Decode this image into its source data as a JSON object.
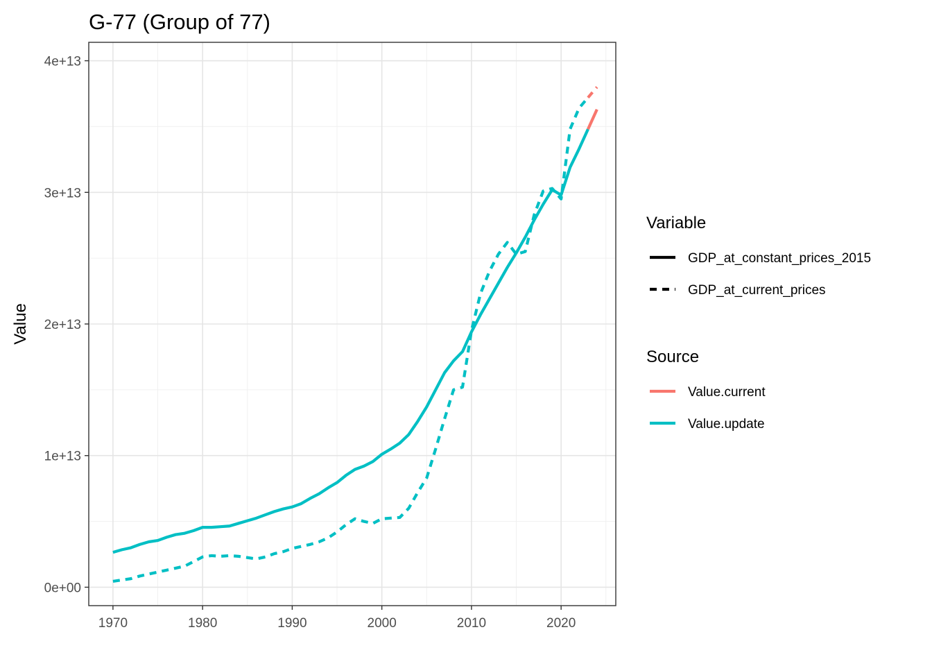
{
  "chart_data": {
    "type": "line",
    "title": "G-77 (Group of 77)",
    "xlabel": "",
    "ylabel": "Value",
    "xlim": [
      1967.3,
      2026.1
    ],
    "ylim": [
      -1400000000000.0,
      41400000000000.0
    ],
    "x_ticks": [
      1970,
      1980,
      1990,
      2000,
      2010,
      2020
    ],
    "x_tick_labels": [
      "1970",
      "1980",
      "1990",
      "2000",
      "2010",
      "2020"
    ],
    "y_ticks": [
      0,
      10000000000000.0,
      20000000000000.0,
      30000000000000.0,
      40000000000000.0
    ],
    "y_tick_labels": [
      "0e+00",
      "1e+13",
      "2e+13",
      "3e+13",
      "4e+13"
    ],
    "y_minor_ticks": [
      5000000000000.0,
      15000000000000.0,
      25000000000000.0,
      35000000000000.0
    ],
    "x_minor_ticks": [
      1975,
      1985,
      1995,
      2005,
      2015,
      2025
    ],
    "grid": true,
    "legend_placement": "right",
    "colors": {
      "Value.current": "#F8766D",
      "Value.update": "#00BFC4"
    },
    "legend": {
      "variable_title": "Variable",
      "variable_items": [
        {
          "label": "GDP_at_constant_prices_2015",
          "dash": "solid"
        },
        {
          "label": "GDP_at_current_prices",
          "dash": "dashed"
        }
      ],
      "source_title": "Source",
      "source_items": [
        {
          "label": "Value.current",
          "color": "#F8766D"
        },
        {
          "label": "Value.update",
          "color": "#00BFC4"
        }
      ]
    },
    "series": [
      {
        "variable": "GDP_at_constant_prices_2015",
        "source": "Value.update",
        "x": [
          1970,
          1971,
          1972,
          1973,
          1974,
          1975,
          1976,
          1977,
          1978,
          1979,
          1980,
          1981,
          1982,
          1983,
          1984,
          1985,
          1986,
          1987,
          1988,
          1989,
          1990,
          1991,
          1992,
          1993,
          1994,
          1995,
          1996,
          1997,
          1998,
          1999,
          2000,
          2001,
          2002,
          2003,
          2004,
          2005,
          2006,
          2007,
          2008,
          2009,
          2010,
          2011,
          2012,
          2013,
          2014,
          2015,
          2016,
          2017,
          2018,
          2019,
          2020,
          2021,
          2022,
          2023
        ],
        "values": [
          2650000000000.0,
          2850000000000.0,
          3000000000000.0,
          3250000000000.0,
          3450000000000.0,
          3550000000000.0,
          3800000000000.0,
          4000000000000.0,
          4100000000000.0,
          4300000000000.0,
          4550000000000.0,
          4550000000000.0,
          4600000000000.0,
          4650000000000.0,
          4850000000000.0,
          5050000000000.0,
          5250000000000.0,
          5500000000000.0,
          5750000000000.0,
          5950000000000.0,
          6100000000000.0,
          6350000000000.0,
          6750000000000.0,
          7100000000000.0,
          7550000000000.0,
          7950000000000.0,
          8500000000000.0,
          8950000000000.0,
          9200000000000.0,
          9550000000000.0,
          10100000000000.0,
          10500000000000.0,
          10950000000000.0,
          11600000000000.0,
          12600000000000.0,
          13700000000000.0,
          15000000000000.0,
          16300000000000.0,
          17200000000000.0,
          17900000000000.0,
          19400000000000.0,
          20700000000000.0,
          21900000000000.0,
          23100000000000.0,
          24300000000000.0,
          25400000000000.0,
          26600000000000.0,
          27900000000000.0,
          29100000000000.0,
          30200000000000.0,
          29800000000000.0,
          31900000000000.0,
          33300000000000.0,
          34800000000000.0
        ]
      },
      {
        "variable": "GDP_at_constant_prices_2015",
        "source": "Value.current",
        "x": [
          2023,
          2024
        ],
        "values": [
          34800000000000.0,
          36300000000000.0
        ]
      },
      {
        "variable": "GDP_at_current_prices",
        "source": "Value.update",
        "x": [
          1970,
          1971,
          1972,
          1973,
          1974,
          1975,
          1976,
          1977,
          1978,
          1979,
          1980,
          1981,
          1982,
          1983,
          1984,
          1985,
          1986,
          1987,
          1988,
          1989,
          1990,
          1991,
          1992,
          1993,
          1994,
          1995,
          1996,
          1997,
          1998,
          1999,
          2000,
          2001,
          2002,
          2003,
          2004,
          2005,
          2006,
          2007,
          2008,
          2009,
          2010,
          2011,
          2012,
          2013,
          2014,
          2015,
          2016,
          2017,
          2018,
          2019,
          2020,
          2021,
          2022,
          2023
        ],
        "values": [
          450000000000.0,
          550000000000.0,
          650000000000.0,
          850000000000.0,
          1000000000000.0,
          1150000000000.0,
          1300000000000.0,
          1450000000000.0,
          1600000000000.0,
          1950000000000.0,
          2300000000000.0,
          2400000000000.0,
          2350000000000.0,
          2400000000000.0,
          2350000000000.0,
          2250000000000.0,
          2150000000000.0,
          2300000000000.0,
          2550000000000.0,
          2700000000000.0,
          2950000000000.0,
          3100000000000.0,
          3250000000000.0,
          3450000000000.0,
          3750000000000.0,
          4200000000000.0,
          4750000000000.0,
          5200000000000.0,
          5000000000000.0,
          4850000000000.0,
          5200000000000.0,
          5250000000000.0,
          5300000000000.0,
          6000000000000.0,
          7200000000000.0,
          8300000000000.0,
          10500000000000.0,
          12800000000000.0,
          15000000000000.0,
          15200000000000.0,
          19500000000000.0,
          22300000000000.0,
          24000000000000.0,
          25300000000000.0,
          26200000000000.0,
          25300000000000.0,
          25500000000000.0,
          28300000000000.0,
          30100000000000.0,
          30300000000000.0,
          29500000000000.0,
          34800000000000.0,
          36400000000000.0,
          37200000000000.0
        ]
      },
      {
        "variable": "GDP_at_current_prices",
        "source": "Value.current",
        "x": [
          2023,
          2024
        ],
        "values": [
          37200000000000.0,
          38000000000000.0
        ]
      }
    ]
  }
}
